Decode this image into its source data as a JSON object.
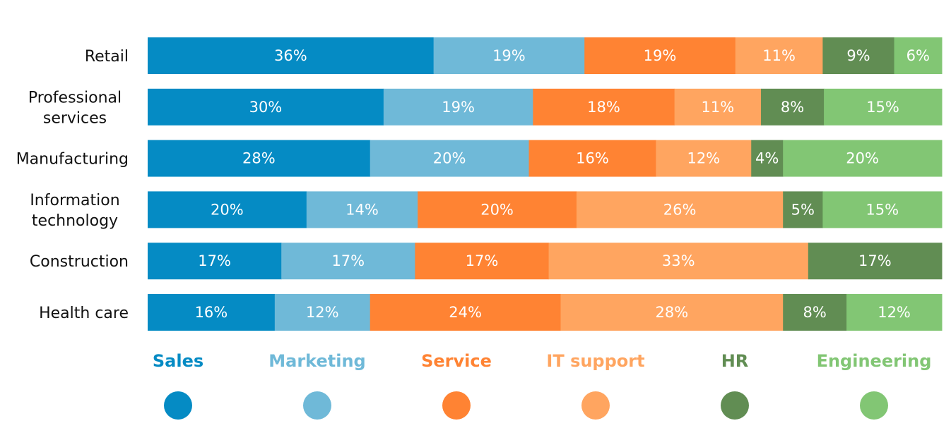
{
  "chart_data": {
    "type": "bar",
    "orientation": "horizontal",
    "stacked": true,
    "title": "",
    "xlabel": "",
    "ylabel": "",
    "grid": false,
    "legend_position": "bottom",
    "categories": [
      "Retail",
      "Professional services",
      "Manufacturing",
      "Information technology",
      "Construction",
      "Health care"
    ],
    "category_lines": [
      [
        "Retail"
      ],
      [
        "Professional",
        "services"
      ],
      [
        "Manufacturing"
      ],
      [
        "Information",
        "technology"
      ],
      [
        "Construction"
      ],
      [
        "Health care"
      ]
    ],
    "series": [
      {
        "name": "Sales",
        "color": "#058BC4",
        "values": [
          36,
          30,
          28,
          20,
          17,
          16
        ]
      },
      {
        "name": "Marketing",
        "color": "#6FB9D8",
        "values": [
          19,
          19,
          20,
          14,
          17,
          12
        ]
      },
      {
        "name": "Service",
        "color": "#FF8333",
        "values": [
          19,
          18,
          16,
          20,
          17,
          24
        ]
      },
      {
        "name": "IT support",
        "color": "#FFA560",
        "values": [
          11,
          11,
          12,
          26,
          33,
          28
        ]
      },
      {
        "name": "HR",
        "color": "#618D53",
        "values": [
          9,
          8,
          4,
          5,
          17,
          8
        ]
      },
      {
        "name": "Engineering",
        "color": "#82C674",
        "values": [
          6,
          15,
          20,
          15,
          0,
          12
        ]
      }
    ],
    "value_suffix": "%"
  }
}
